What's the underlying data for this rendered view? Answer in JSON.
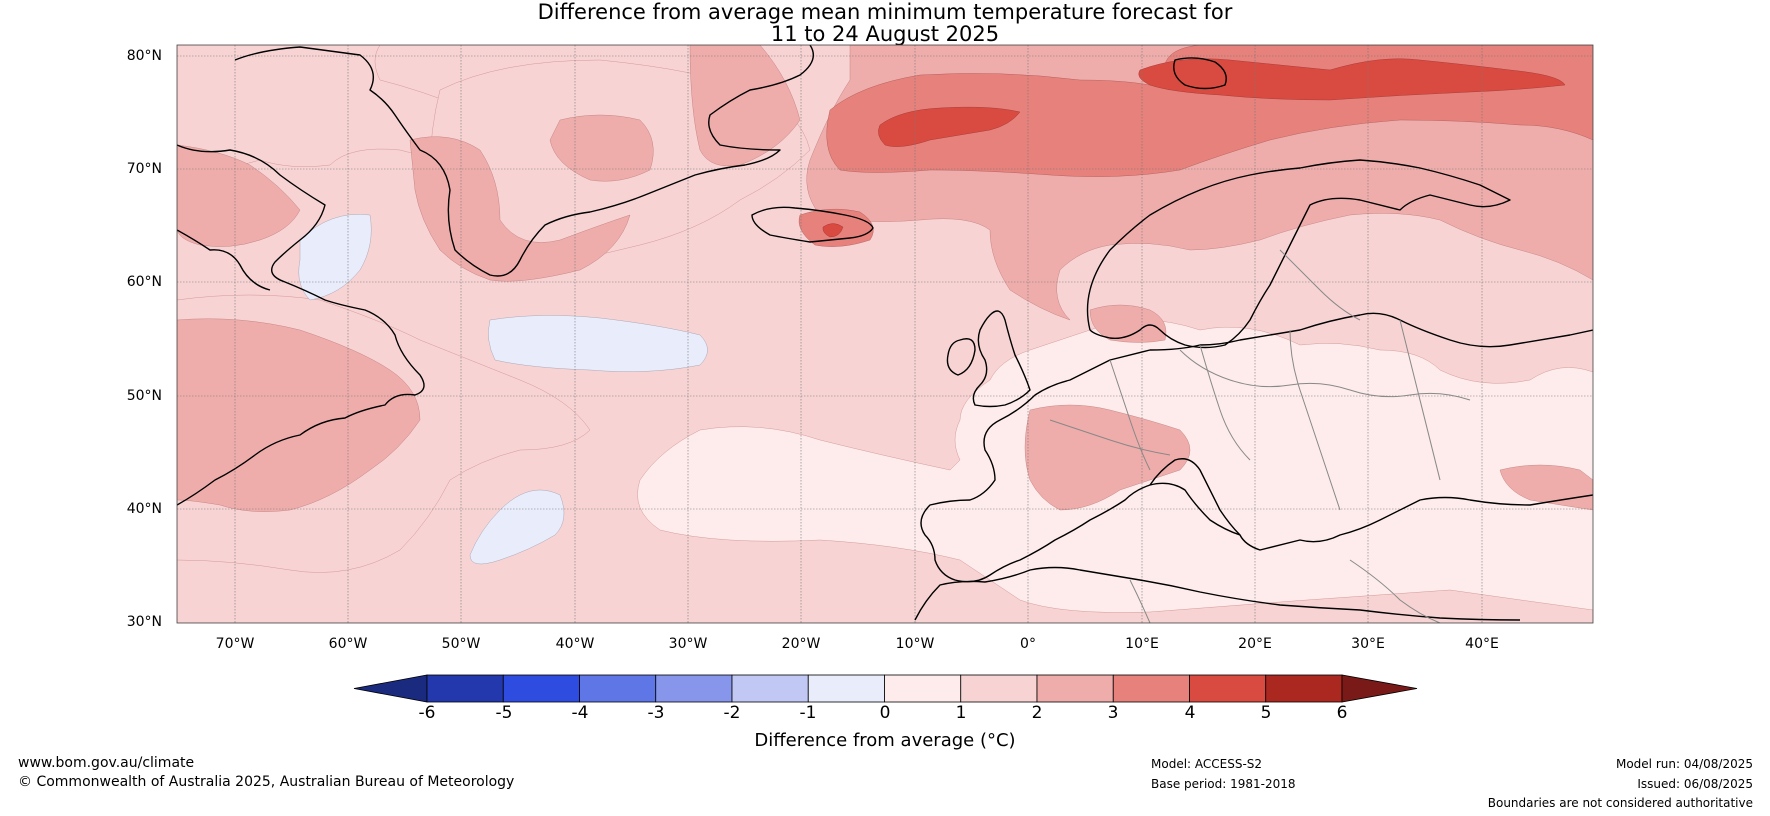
{
  "title": {
    "line1": "Difference from average mean minimum temperature forecast for",
    "line2": "11 to 24 August 2025"
  },
  "map": {
    "lat_labels": [
      "80°N",
      "70°N",
      "60°N",
      "50°N",
      "40°N",
      "30°N"
    ],
    "lon_labels": [
      "70°W",
      "60°W",
      "50°W",
      "40°W",
      "30°W",
      "20°W",
      "10°W",
      "0°",
      "10°E",
      "20°E",
      "30°E",
      "40°E"
    ],
    "colors": {
      "c_m6": "#1a2a7e",
      "c_m5": "#2438ad",
      "c_m4": "#2e4ce0",
      "c_m3": "#5f76e6",
      "c_m2": "#8796ea",
      "c_m1": "#c0c8f3",
      "c_0": "#e8ecfb",
      "c_1": "#fdeceb",
      "c_2": "#f7d3d3",
      "c_3": "#eeadab",
      "c_4": "#e6817c",
      "c_5": "#d94b40",
      "c_6": "#ab2820",
      "c_7": "#7a1a18"
    }
  },
  "colorbar": {
    "ticks": [
      "-6",
      "-5",
      "-4",
      "-3",
      "-2",
      "-1",
      "0",
      "1",
      "2",
      "3",
      "4",
      "5",
      "6"
    ],
    "label": "Difference from average (°C)"
  },
  "footer": {
    "website": "www.bom.gov.au/climate",
    "copyright": "© Commonwealth of Australia 2025, Australian Bureau of Meteorology",
    "model": "Model: ACCESS-S2",
    "base_period": "Base period: 1981-2018",
    "model_run": "Model run: 04/08/2025",
    "issued": "Issued: 06/08/2025",
    "disclaimer": "Boundaries are not considered authoritative"
  }
}
